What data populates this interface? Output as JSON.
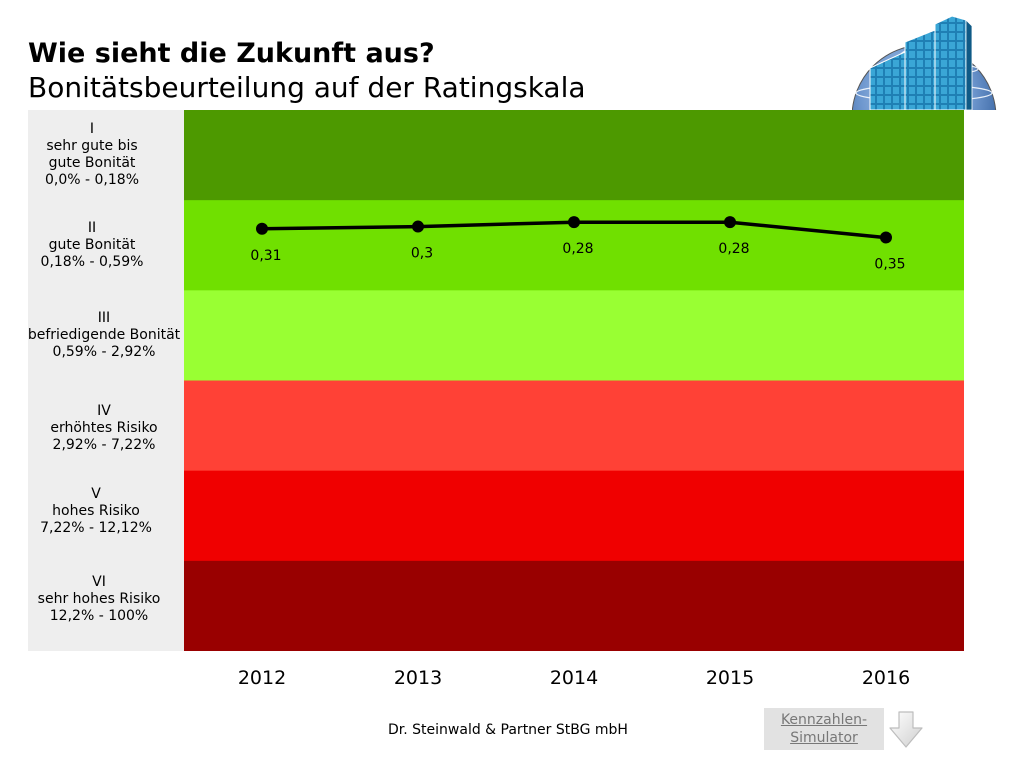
{
  "chart_data": {
    "type": "line",
    "title": "Wie sieht die Zukunft aus?",
    "subtitle": "Bonitätsbeurteilung auf der Ratingskala",
    "xlabel": "",
    "ylabel": "",
    "categories": [
      "2012",
      "2013",
      "2014",
      "2015",
      "2016"
    ],
    "series": [
      {
        "values": [
          0.31,
          0.3,
          0.28,
          0.28,
          0.35
        ],
        "data_labels": [
          "0,31",
          "0,3",
          "0,28",
          "0,28",
          "0,35"
        ],
        "color": "#000000"
      }
    ],
    "bands": [
      {
        "numeral": "I",
        "description": [
          "sehr gute bis",
          "gute Bonität"
        ],
        "range_label": "0,0% - 0,18%",
        "range": [
          0.0,
          0.18
        ],
        "color": "#4d9900"
      },
      {
        "numeral": "II",
        "description": [
          "gute Bonität"
        ],
        "range_label": "0,18% - 0,59%",
        "range": [
          0.18,
          0.59
        ],
        "color": "#70e000"
      },
      {
        "numeral": "III",
        "description": [
          "befriedigende Bonität"
        ],
        "range_label": "0,59% - 2,92%",
        "range": [
          0.59,
          2.92
        ],
        "color": "#99ff33"
      },
      {
        "numeral": "IV",
        "description": [
          "erhöhtes Risiko"
        ],
        "range_label": "2,92% - 7,22%",
        "range": [
          2.92,
          7.22
        ],
        "color": "#ff4136"
      },
      {
        "numeral": "V",
        "description": [
          "hohes Risiko"
        ],
        "range_label": "7,22% - 12,12%",
        "range": [
          7.22,
          12.12
        ],
        "color": "#f00000"
      },
      {
        "numeral": "VI",
        "description": [
          "sehr hohes Risiko"
        ],
        "range_label": "12,2% - 100%",
        "range": [
          12.2,
          100
        ],
        "color": "#990000"
      }
    ],
    "ylim": [
      0,
      100
    ],
    "y_inverted": true,
    "grid": false,
    "legend": "none"
  },
  "footer": {
    "company": "Dr. Steinwald & Partner StBG mbH"
  },
  "simulator_button": {
    "label_line1": "Kennzahlen-",
    "label_line2": "Simulator"
  },
  "icons": {
    "logo": "globe-skyscraper-logo",
    "next": "arrow-down-icon"
  },
  "colors": {
    "label_column_bg": "#eeeeee",
    "button_bg": "#e2e2e2",
    "button_text": "#777777",
    "text": "#000000"
  }
}
